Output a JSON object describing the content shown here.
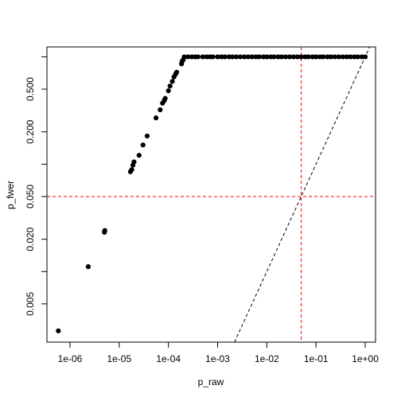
{
  "chart_data": {
    "type": "scatter",
    "x_label": "p_raw",
    "y_label": "p_fwer",
    "log_x": true,
    "log_y": true,
    "xlim": [
      3.4e-07,
      1.62
    ],
    "ylim": [
      0.0022,
      1.236
    ],
    "xticks": [
      {
        "value": 1e-06,
        "label": "1e-06"
      },
      {
        "value": 1e-05,
        "label": "1e-05"
      },
      {
        "value": 0.0001,
        "label": "1e-04"
      },
      {
        "value": 0.001,
        "label": "1e-03"
      },
      {
        "value": 0.01,
        "label": "1e-02"
      },
      {
        "value": 0.1,
        "label": "1e-01"
      },
      {
        "value": 1,
        "label": "1e+00"
      }
    ],
    "yticks": [
      {
        "value": 0.005,
        "label": "0.005"
      },
      {
        "value": 0.02,
        "label": "0.020"
      },
      {
        "value": 0.05,
        "label": "0.050"
      },
      {
        "value": 0.2,
        "label": "0.200"
      },
      {
        "value": 0.5,
        "label": "0.500"
      }
    ],
    "yticks_minor": [
      0.01,
      0.1,
      1
    ],
    "hlines": [
      0.05
    ],
    "vlines": [
      0.05
    ],
    "ref_line_color": "#ff0000",
    "color": "#000000",
    "x": [
      5.8e-07,
      2.35e-06,
      5e-06,
      5.1e-06,
      1.69e-05,
      1.8e-05,
      1.9e-05,
      2e-05,
      2.54e-05,
      3.05e-05,
      3.7e-05,
      5.6e-05,
      6.8e-05,
      7.6e-05,
      8.2e-05,
      8.6e-05,
      0.0001,
      0.000108,
      0.00012,
      0.00013,
      0.00014,
      0.000147,
      0.000185,
      0.00019,
      0.0002,
      0.00021,
      0.00025,
      0.0003,
      0.00035,
      0.0004,
      0.0005,
      0.0006,
      0.0007,
      0.0008,
      0.001,
      0.0012,
      0.0014,
      0.0017,
      0.002,
      0.0024,
      0.0029,
      0.0035,
      0.0042,
      0.005,
      0.006,
      0.007,
      0.0085,
      0.01,
      0.012,
      0.014,
      0.017,
      0.02,
      0.024,
      0.029,
      0.035,
      0.042,
      0.05,
      0.06,
      0.07,
      0.085,
      0.1,
      0.12,
      0.14,
      0.17,
      0.2,
      0.24,
      0.29,
      0.35,
      0.42,
      0.5,
      0.6,
      0.7,
      0.85,
      1
    ],
    "y": [
      0.0028,
      0.0111,
      0.0232,
      0.0241,
      0.085,
      0.089,
      0.098,
      0.105,
      0.121,
      0.151,
      0.183,
      0.27,
      0.321,
      0.37,
      0.39,
      0.41,
      0.483,
      0.535,
      0.59,
      0.65,
      0.69,
      0.72,
      0.86,
      0.91,
      0.94,
      1,
      1,
      1,
      1,
      1,
      1,
      1,
      1,
      1,
      1,
      1,
      1,
      1,
      1,
      1,
      1,
      1,
      1,
      1,
      1,
      1,
      1,
      1,
      1,
      1,
      1,
      1,
      1,
      1,
      1,
      1,
      1,
      1,
      1,
      1,
      1,
      1,
      1,
      1,
      1,
      1,
      1,
      1,
      1,
      1,
      1,
      1,
      1,
      1
    ]
  }
}
